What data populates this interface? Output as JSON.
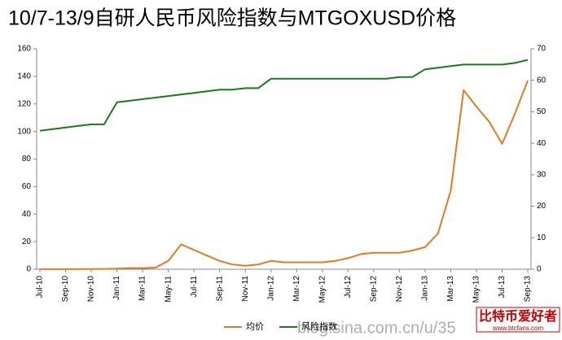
{
  "chart_data": {
    "type": "line",
    "title": "10/7-13/9自研人民币风险指数与MTGOXUSD价格",
    "categories": [
      "Jul-10",
      null,
      "Sep-10",
      null,
      "Nov-10",
      null,
      "Jan-11",
      null,
      "Mar-11",
      null,
      "May-11",
      null,
      "Jul-11",
      null,
      "Sep-11",
      null,
      "Nov-11",
      null,
      "Jan-12",
      null,
      "Mar-12",
      null,
      "May-12",
      null,
      "Jul-12",
      null,
      "Sep-12",
      null,
      "Nov-12",
      null,
      "Jan-13",
      null,
      "Mar-13",
      null,
      "May-13",
      null,
      "Jul-13",
      null,
      "Sep-13"
    ],
    "series": [
      {
        "name": "均价",
        "color": "#e07b20",
        "values": [
          0.07,
          0.07,
          0.06,
          0.1,
          0.2,
          0.25,
          0.4,
          0.9,
          0.8,
          1.2,
          6,
          18,
          14,
          10,
          6,
          3.5,
          2.5,
          3.5,
          6,
          5,
          5,
          5,
          5,
          6,
          8,
          11,
          12,
          12,
          12,
          13.5,
          16,
          26,
          57,
          130,
          118,
          107,
          91,
          113,
          137
        ]
      },
      {
        "name": "风险指数",
        "color": "#1a7a1a",
        "axis": "y2",
        "values": [
          44,
          44.5,
          45,
          45.5,
          46,
          46,
          53,
          53.5,
          54,
          54.5,
          55,
          55.5,
          56,
          56.5,
          57,
          57,
          57.5,
          57.5,
          60.5,
          60.5,
          60.5,
          60.5,
          60.5,
          60.5,
          60.5,
          60.5,
          60.5,
          60.5,
          61,
          61,
          63.5,
          64,
          64.5,
          65,
          65,
          65,
          65,
          65.5,
          66.5
        ]
      }
    ],
    "ylim": [
      0,
      160
    ],
    "yticks": [
      0,
      20,
      40,
      60,
      80,
      100,
      120,
      140,
      160
    ],
    "y2lim": [
      0,
      70
    ],
    "y2ticks": [
      0,
      10,
      20,
      30,
      40,
      50,
      60,
      70
    ],
    "grid": false,
    "annotations": [
      "blog.sina.com.cn/u/35",
      "比特币爱好者",
      "www.btcfans.com"
    ]
  }
}
